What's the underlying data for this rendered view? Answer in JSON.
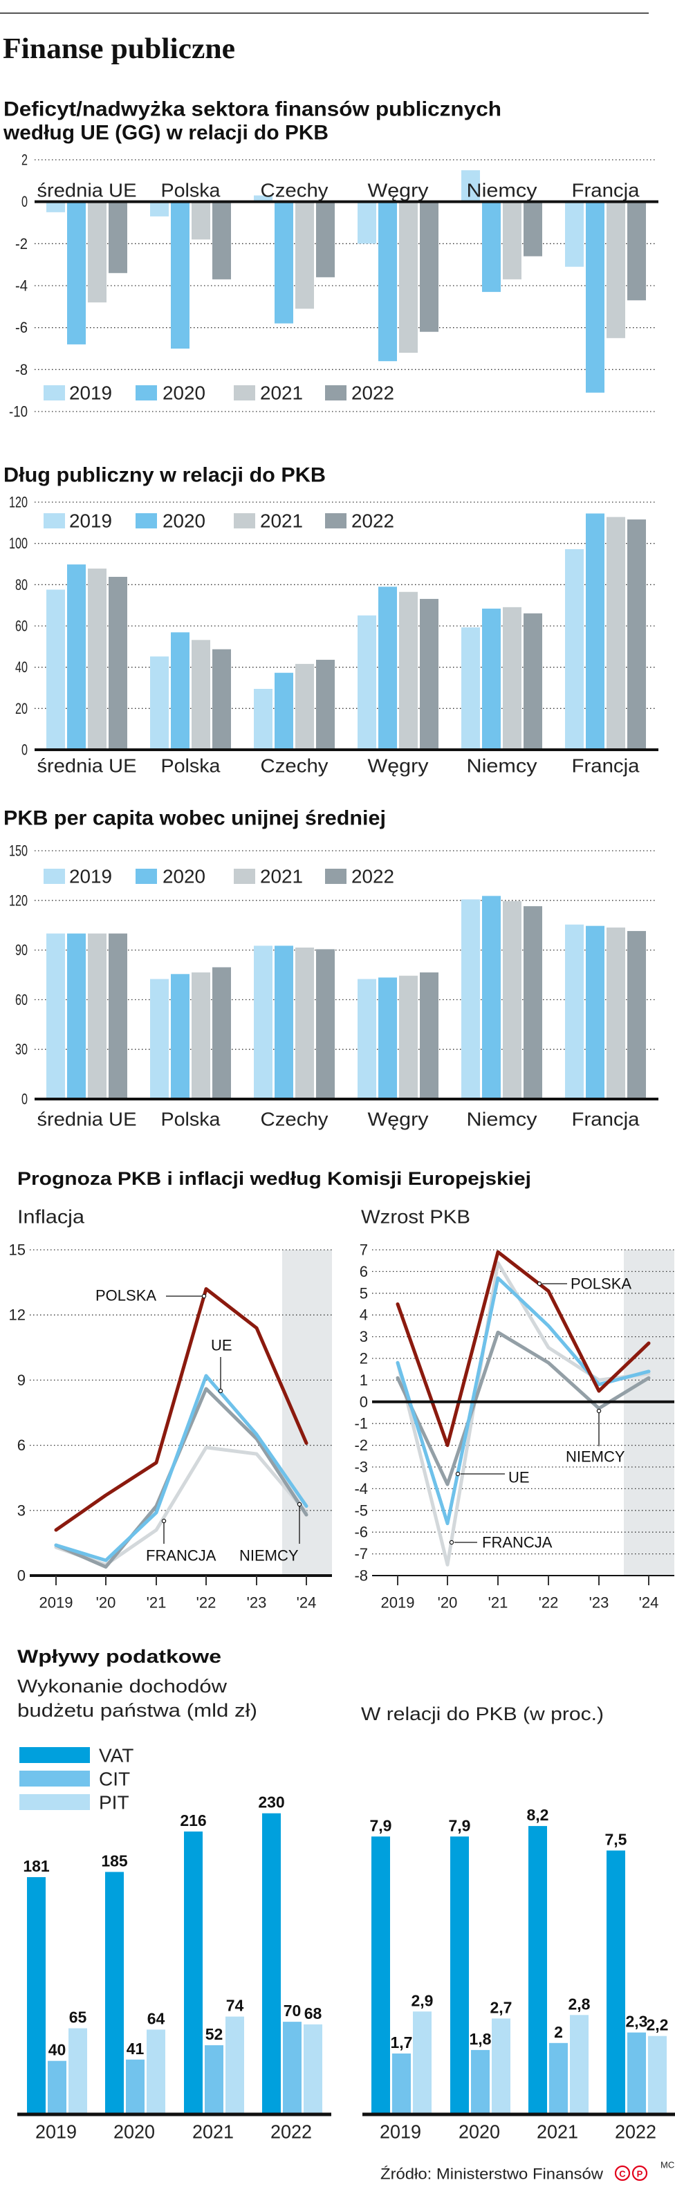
{
  "page_title": "Finanse publiczne",
  "colors": {
    "2019": "#b5dff5",
    "2020": "#72c3ed",
    "2021": "#c6cdd0",
    "2022": "#939fa6",
    "POLSKA": "#8b1a0e",
    "UE": "#6ec1ea",
    "NIEMCY": "#939fa6",
    "FRANCJA": "#d3d8db",
    "VAT": "#00a0dd",
    "CIT": "#72c3ed",
    "PIT": "#b5dff5",
    "forecast_shade": "#e5e8ea"
  },
  "forecast_section_title": "Prognoza PKB i inflacji według Komisji Europejskiej",
  "tax_section": {
    "title": "Wpływy podatkowe",
    "left_title_lines": [
      "Wykonanie dochodów",
      "budżetu państwa (mld zł)"
    ],
    "right_title": "W relacji do PKB (w proc.)"
  },
  "chart_data": [
    {
      "type": "bar",
      "title_lines": [
        "Deficyt/nadwyżka sektora finansów publicznych",
        "według UE (GG) w relacji do PKB"
      ],
      "categories": [
        "średnia UE",
        "Polska",
        "Czechy",
        "Węgry",
        "Niemcy",
        "Francja"
      ],
      "series": [
        {
          "name": "2019",
          "values": [
            -0.5,
            -0.7,
            0.3,
            -2.0,
            1.5,
            -3.1
          ]
        },
        {
          "name": "2020",
          "values": [
            -6.8,
            -7.0,
            -5.8,
            -7.6,
            -4.3,
            -9.1
          ]
        },
        {
          "name": "2021",
          "values": [
            -4.8,
            -1.8,
            -5.1,
            -7.2,
            -3.7,
            -6.5
          ]
        },
        {
          "name": "2022",
          "values": [
            -3.4,
            -3.7,
            -3.6,
            -6.2,
            -2.6,
            -4.7
          ]
        }
      ],
      "ylim": [
        -10,
        2
      ],
      "yticks": [
        "2",
        "0",
        "-2",
        "-4",
        "-6",
        "-8",
        "-10"
      ],
      "grid": true,
      "legend": "bottom-left"
    },
    {
      "type": "bar",
      "title": "Dług publiczny w relacji do PKB",
      "categories": [
        "średnia UE",
        "Polska",
        "Czechy",
        "Węgry",
        "Niemcy",
        "Francja"
      ],
      "series": [
        {
          "name": "2019",
          "values": [
            77.6,
            45.2,
            29.5,
            65.1,
            59.3,
            97.2
          ]
        },
        {
          "name": "2020",
          "values": [
            89.8,
            56.9,
            37.3,
            79.0,
            68.4,
            114.5
          ]
        },
        {
          "name": "2021",
          "values": [
            87.8,
            53.2,
            41.6,
            76.5,
            69.1,
            112.8
          ]
        },
        {
          "name": "2022",
          "values": [
            83.8,
            48.7,
            43.6,
            73.1,
            66.1,
            111.6
          ]
        }
      ],
      "ylim": [
        0,
        120
      ],
      "yticks": [
        "120",
        "100",
        "80",
        "60",
        "40",
        "20",
        "0"
      ],
      "grid": true,
      "legend": "top-left"
    },
    {
      "type": "bar",
      "title": "PKB per capita wobec unijnej średniej",
      "categories": [
        "średnia UE",
        "Polska",
        "Czechy",
        "Węgry",
        "Niemcy",
        "Francja"
      ],
      "series": [
        {
          "name": "2019",
          "values": [
            100,
            72.5,
            92.6,
            72.5,
            120.6,
            105.4
          ]
        },
        {
          "name": "2020",
          "values": [
            100,
            75.5,
            92.6,
            73.4,
            122.7,
            104.6
          ]
        },
        {
          "name": "2021",
          "values": [
            100,
            76.5,
            91.5,
            74.5,
            119.6,
            103.6
          ]
        },
        {
          "name": "2022",
          "values": [
            100,
            79.6,
            90.5,
            76.5,
            116.5,
            101.5
          ]
        }
      ],
      "ylim": [
        0,
        150
      ],
      "yticks": [
        "150",
        "120",
        "90",
        "60",
        "30",
        "0"
      ],
      "grid": true,
      "legend": "top-left"
    },
    {
      "type": "line",
      "title": "Inflacja",
      "x": [
        "2019",
        "'20",
        "'21",
        "'22",
        "'23",
        "'24"
      ],
      "series": [
        {
          "name": "FRANCJA",
          "values": [
            1.3,
            0.5,
            2.1,
            5.9,
            5.6,
            2.9
          ]
        },
        {
          "name": "NIEMCY",
          "values": [
            1.4,
            0.4,
            3.2,
            8.6,
            6.3,
            2.8
          ]
        },
        {
          "name": "UE",
          "values": [
            1.4,
            0.7,
            2.9,
            9.2,
            6.5,
            3.2
          ]
        },
        {
          "name": "POLSKA",
          "values": [
            2.1,
            3.7,
            5.2,
            13.2,
            11.4,
            6.1
          ]
        }
      ],
      "ylim": [
        0,
        15
      ],
      "yticks": [
        "15",
        "12",
        "9",
        "6",
        "3",
        "0"
      ],
      "forecast_shaded": "'24",
      "grid": true
    },
    {
      "type": "line",
      "title": "Wzrost PKB",
      "x": [
        "2019",
        "'20",
        "'21",
        "'22",
        "'23",
        "'24"
      ],
      "series": [
        {
          "name": "FRANCJA",
          "values": [
            1.8,
            -7.5,
            6.4,
            2.5,
            1.0,
            1.3
          ]
        },
        {
          "name": "NIEMCY",
          "values": [
            1.1,
            -3.8,
            3.2,
            1.8,
            -0.3,
            1.1
          ]
        },
        {
          "name": "UE",
          "values": [
            1.8,
            -5.6,
            5.7,
            3.5,
            0.8,
            1.4
          ]
        },
        {
          "name": "POLSKA",
          "values": [
            4.5,
            -2.0,
            6.9,
            5.1,
            0.5,
            2.7
          ]
        }
      ],
      "ylim": [
        -8,
        7
      ],
      "yticks": [
        "7",
        "6",
        "5",
        "4",
        "3",
        "2",
        "1",
        "0",
        "-1",
        "-2",
        "-3",
        "-4",
        "-5",
        "-6",
        "-7",
        "-8"
      ],
      "forecast_shaded": "'24",
      "grid": true
    },
    {
      "type": "bar",
      "categories": [
        "2019",
        "2020",
        "2021",
        "2022"
      ],
      "series": [
        {
          "name": "VAT",
          "values": [
            181,
            185,
            216,
            230
          ],
          "labels": [
            "181",
            "185",
            "216",
            "230"
          ]
        },
        {
          "name": "CIT",
          "values": [
            40,
            41,
            52,
            70
          ],
          "labels": [
            "40",
            "41",
            "52",
            "70"
          ]
        },
        {
          "name": "PIT",
          "values": [
            65,
            64,
            74,
            68
          ],
          "labels": [
            "65",
            "64",
            "74",
            "68"
          ]
        }
      ],
      "legend": "top-left"
    },
    {
      "type": "bar",
      "categories": [
        "2019",
        "2020",
        "2021",
        "2022"
      ],
      "series": [
        {
          "name": "VAT",
          "values": [
            7.9,
            7.9,
            8.2,
            7.5
          ],
          "labels": [
            "7,9",
            "7,9",
            "8,2",
            "7,5"
          ]
        },
        {
          "name": "CIT",
          "values": [
            1.7,
            1.8,
            2.0,
            2.3
          ],
          "labels": [
            "1,7",
            "1,8",
            "2",
            "2,3"
          ]
        },
        {
          "name": "PIT",
          "values": [
            2.9,
            2.7,
            2.8,
            2.2
          ],
          "labels": [
            "2,9",
            "2,7",
            "2,8",
            "2,2"
          ]
        }
      ]
    }
  ],
  "source": "Źródło: Ministerstwo Finansów",
  "credit": "MC",
  "logo_letters": [
    "C",
    "P"
  ]
}
